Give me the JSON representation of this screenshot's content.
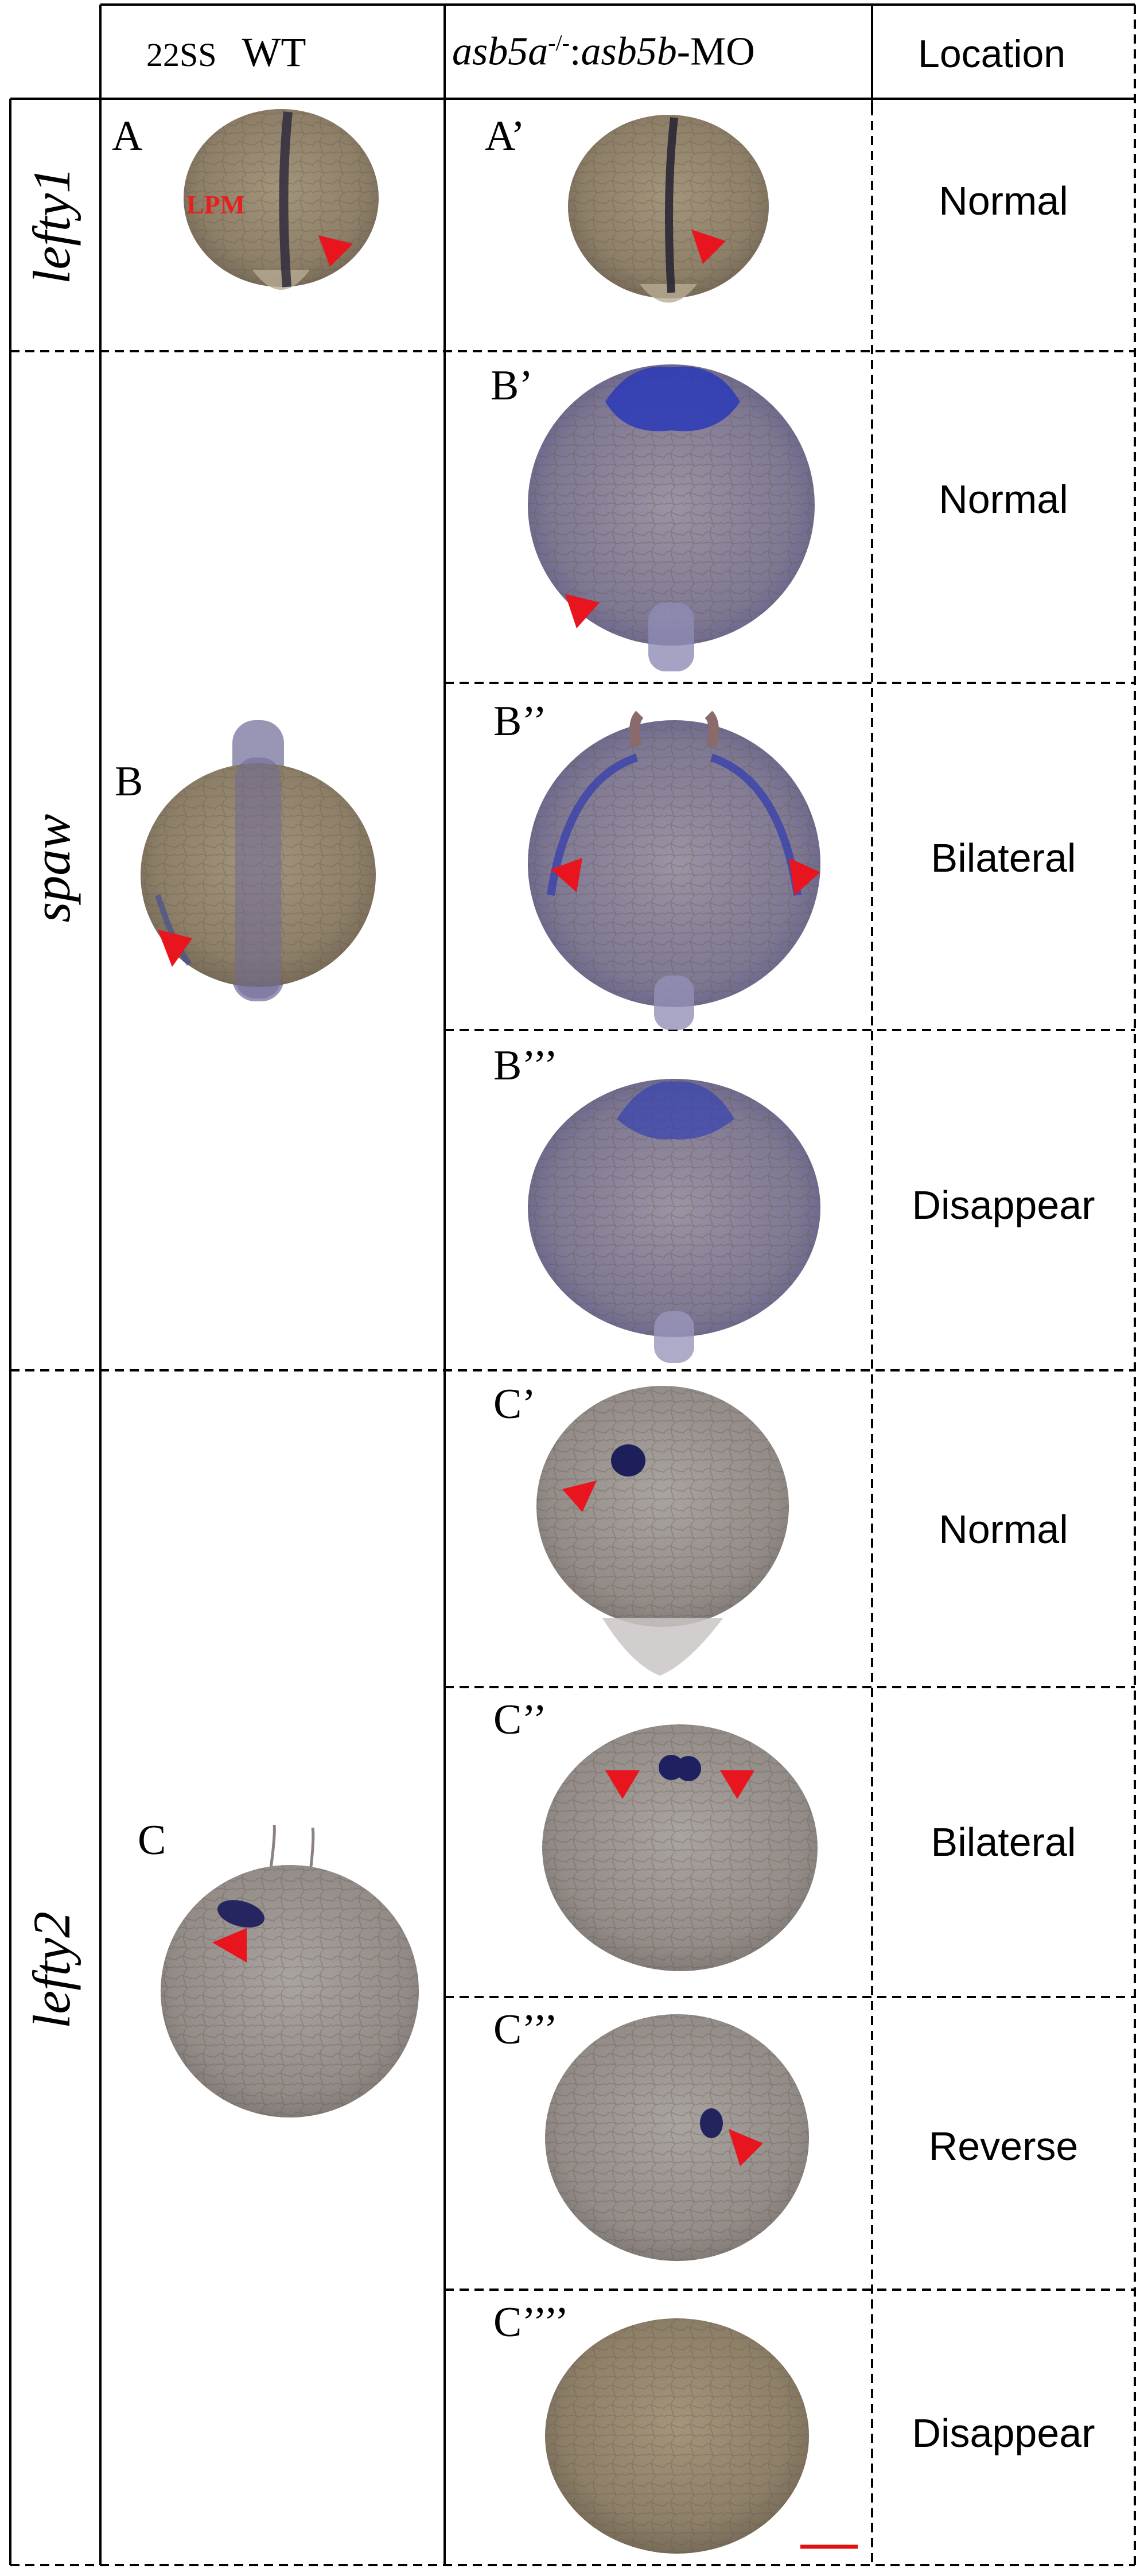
{
  "header": {
    "col1_stage": "22SS",
    "col1_genotype": "WT",
    "col2_gene_a": "asb5a",
    "col2_superscript": "-/-",
    "col2_sep": ":",
    "col2_gene_b": "asb5b",
    "col2_suffix": "-MO",
    "col3": "Location"
  },
  "genes": [
    "lefty1",
    "spaw",
    "lefty2"
  ],
  "panels": {
    "A": "A",
    "A1": "A’",
    "B": "B",
    "B1": "B’",
    "B2": "B’’",
    "B3": "B’’’",
    "C": "C",
    "C1": "C’",
    "C2": "C’’",
    "C3": "C’’’",
    "C4": "C’’’’"
  },
  "annotation": "LPM",
  "locations": {
    "A1": "Normal",
    "B1": "Normal",
    "B2": "Bilateral",
    "B3": "Disappear",
    "C1": "Normal",
    "C2": "Bilateral",
    "C3": "Reverse",
    "C4": "Disappear"
  },
  "colors": {
    "arrow": "#e8141e",
    "scale_bar": "#e01010",
    "embryo": "#9e8f79",
    "stain": "#2a2f8a"
  }
}
